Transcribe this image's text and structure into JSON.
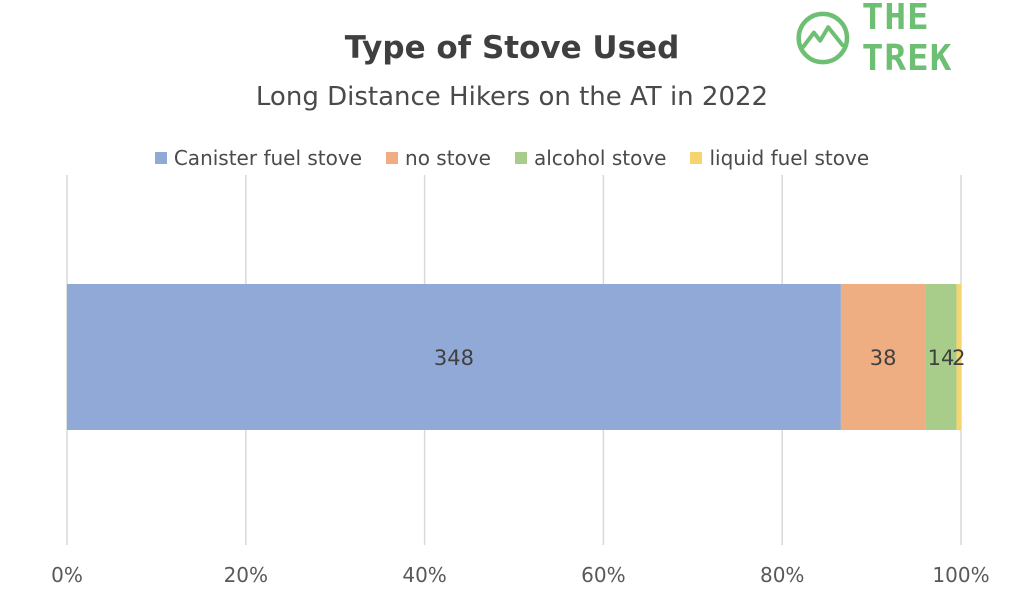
{
  "logo": {
    "text": "THE TREK",
    "color": "#6cbf73"
  },
  "chart_data": {
    "type": "bar",
    "orientation": "horizontal",
    "stacking": "percent",
    "title": "Type of Stove Used",
    "subtitle": "Long Distance Hikers on the AT in 2022",
    "xlabel": "",
    "ylabel": "",
    "xlim": [
      0,
      100
    ],
    "x_ticks": [
      "0%",
      "20%",
      "40%",
      "60%",
      "80%",
      "100%"
    ],
    "grid": true,
    "legend_position": "top",
    "series": [
      {
        "name": "Canister fuel stove",
        "value": 348,
        "label": "348",
        "color": "#91a9d6"
      },
      {
        "name": "no stove",
        "value": 38,
        "label": "38",
        "color": "#efad82"
      },
      {
        "name": "alcohol stove",
        "value": 14,
        "label": "14",
        "color": "#a8cd8a"
      },
      {
        "name": "liquid fuel stove",
        "value": 2,
        "label": "2",
        "color": "#f7d56e"
      }
    ]
  }
}
